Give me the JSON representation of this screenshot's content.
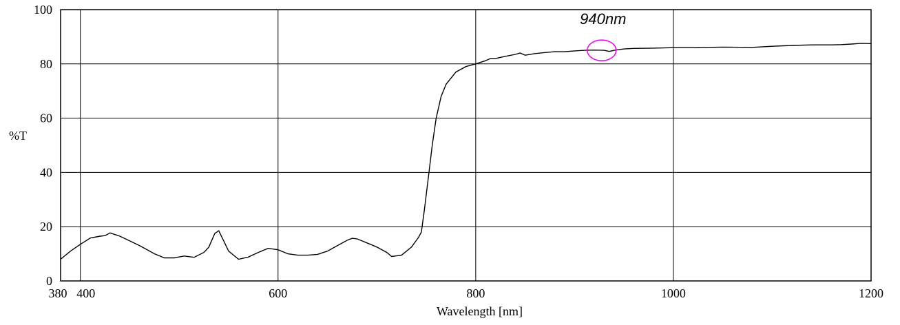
{
  "chart_data": {
    "type": "line",
    "title": "",
    "xlabel": "Wavelength [nm]",
    "ylabel": "%T",
    "xlim": [
      380,
      1200
    ],
    "ylim": [
      0,
      100
    ],
    "grid": true,
    "x_tick_labels": [
      {
        "value": 380,
        "label": "380"
      },
      {
        "value": 400,
        "label": "400"
      },
      {
        "value": 600,
        "label": "600"
      },
      {
        "value": 800,
        "label": "800"
      },
      {
        "value": 1000,
        "label": "1000"
      },
      {
        "value": 1200,
        "label": "1200"
      }
    ],
    "x_grid": [
      400,
      600,
      800,
      1000
    ],
    "y_tick_labels": [
      {
        "value": 0,
        "label": "0"
      },
      {
        "value": 20,
        "label": "20"
      },
      {
        "value": 40,
        "label": "40"
      },
      {
        "value": 60,
        "label": "60"
      },
      {
        "value": 80,
        "label": "80"
      },
      {
        "value": 100,
        "label": "100"
      }
    ],
    "y_grid": [
      20,
      40,
      60,
      80
    ],
    "annotation": {
      "text": "940nm",
      "x": 940,
      "y": 85,
      "marker": "ellipse",
      "marker_color": "#ee00ee"
    },
    "series": [
      {
        "color": "#000000",
        "x": [
          380,
          390,
          400,
          410,
          420,
          425,
          430,
          440,
          460,
          475,
          485,
          495,
          505,
          515,
          525,
          530,
          536,
          540,
          550,
          560,
          570,
          580,
          590,
          600,
          610,
          620,
          630,
          640,
          650,
          660,
          670,
          675,
          680,
          690,
          700,
          710,
          715,
          725,
          735,
          742,
          745,
          748,
          752,
          756,
          760,
          765,
          770,
          780,
          790,
          800,
          810,
          815,
          820,
          830,
          840,
          845,
          850,
          860,
          870,
          880,
          890,
          900,
          910,
          920,
          930,
          935,
          940,
          950,
          960,
          980,
          1000,
          1020,
          1050,
          1080,
          1100,
          1120,
          1140,
          1160,
          1170,
          1180,
          1190,
          1200
        ],
        "y": [
          8,
          11,
          13.5,
          15.8,
          16.5,
          16.7,
          17.7,
          16.5,
          13,
          10,
          8.5,
          8.5,
          9.2,
          8.7,
          10.5,
          12.5,
          17.5,
          18.5,
          11,
          8,
          8.8,
          10.5,
          12,
          11.5,
          10,
          9.5,
          9.5,
          9.8,
          11,
          13,
          15,
          15.7,
          15.5,
          14,
          12.5,
          10.5,
          9,
          9.5,
          12.5,
          16,
          18,
          26,
          38,
          50,
          60,
          68,
          72.5,
          77,
          79,
          80,
          81.2,
          82,
          82,
          82.8,
          83.5,
          84,
          83.2,
          83.8,
          84.2,
          84.5,
          84.5,
          84.8,
          85,
          85.1,
          85,
          84.6,
          85,
          85.5,
          85.7,
          85.8,
          86,
          86,
          86.2,
          86.1,
          86.5,
          86.8,
          87,
          87,
          87.1,
          87.3,
          87.6,
          87.5
        ]
      }
    ]
  }
}
